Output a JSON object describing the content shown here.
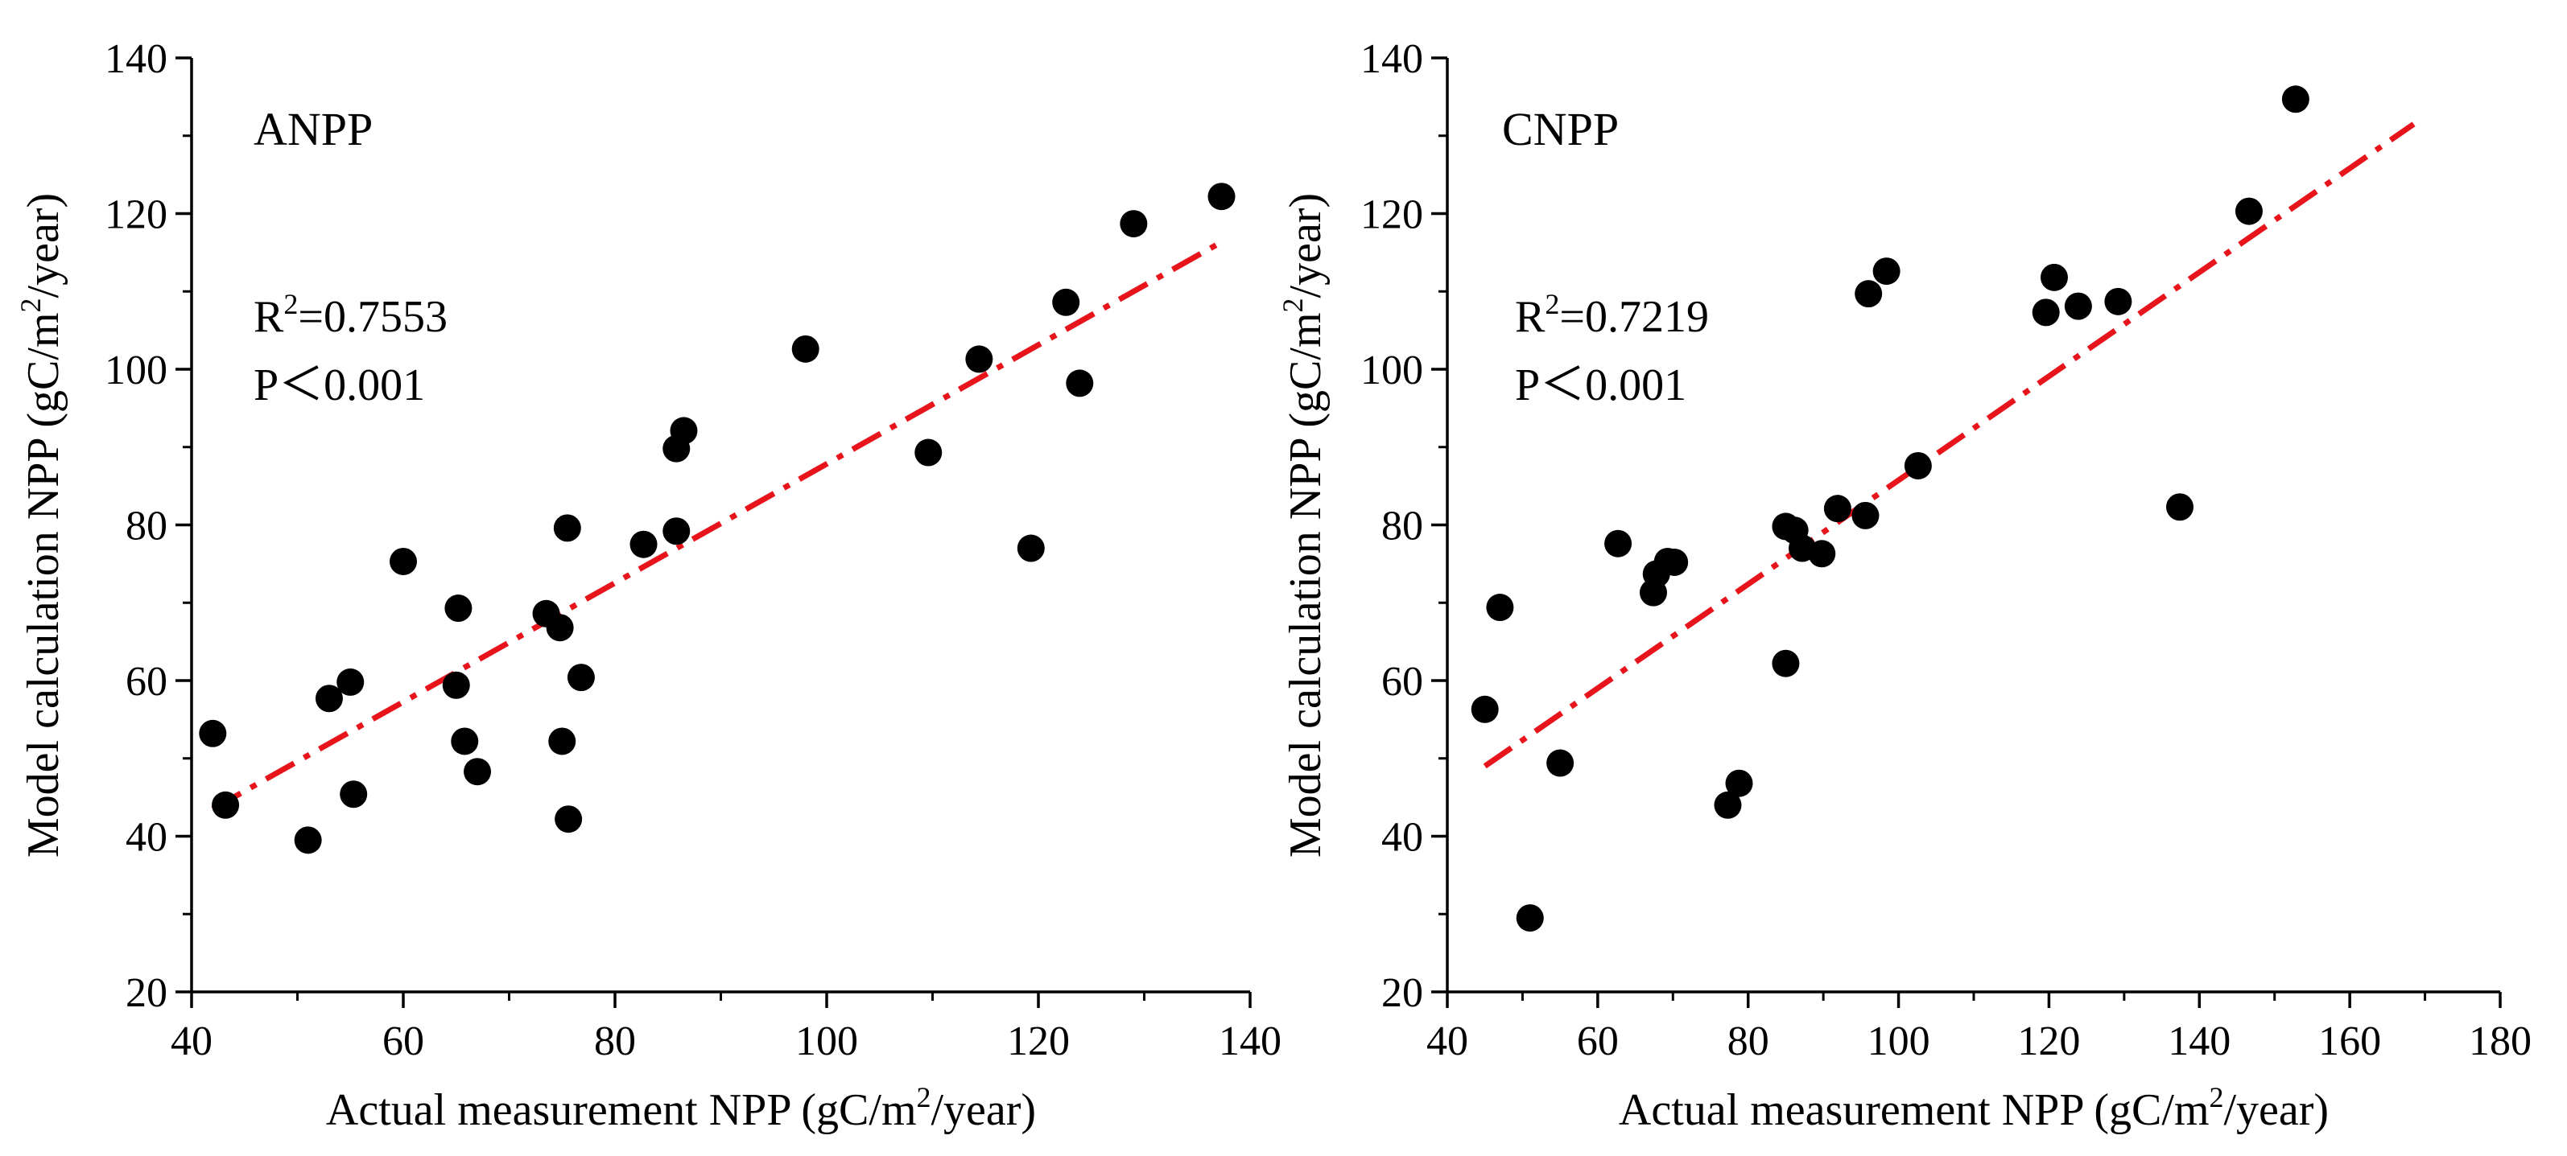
{
  "chart_data": [
    {
      "type": "scatter",
      "title": "ANPP",
      "xlabel": {
        "prefix": "Actual measurement NPP (gC/m",
        "sup": "2",
        "suffix": "/year)"
      },
      "ylabel": {
        "prefix": "Model calculation NPP (gC/m",
        "sup": "2",
        "suffix": "/year)"
      },
      "xlim": [
        40,
        140
      ],
      "ylim": [
        20,
        140
      ],
      "xticks": [
        40,
        60,
        80,
        100,
        120,
        140
      ],
      "yticks": [
        20,
        40,
        60,
        80,
        100,
        120,
        140
      ],
      "r2": {
        "prefix": "R",
        "sup": "2",
        "value": "=0.7553"
      },
      "p_text": "P＜0.001",
      "fit": {
        "x": [
          42,
          137.5
        ],
        "y": [
          43.5,
          116.5
        ]
      },
      "points": [
        [
          42,
          53.2
        ],
        [
          43.2,
          44
        ],
        [
          51,
          39.5
        ],
        [
          53,
          57.7
        ],
        [
          55,
          59.8
        ],
        [
          55.3,
          45.4
        ],
        [
          60,
          75.3
        ],
        [
          65,
          59.4
        ],
        [
          65.2,
          69.3
        ],
        [
          65.8,
          52.2
        ],
        [
          67,
          48.3
        ],
        [
          73.5,
          68.6
        ],
        [
          74.8,
          66.8
        ],
        [
          75,
          52.2
        ],
        [
          75.5,
          79.6
        ],
        [
          75.6,
          42.2
        ],
        [
          76.8,
          60.4
        ],
        [
          82.7,
          77.5
        ],
        [
          85.8,
          79.2
        ],
        [
          85.8,
          89.8
        ],
        [
          86.5,
          92.1
        ],
        [
          98,
          102.6
        ],
        [
          109.6,
          89.3
        ],
        [
          114.4,
          101.3
        ],
        [
          119.3,
          77
        ],
        [
          122.6,
          108.6
        ],
        [
          123.9,
          98.2
        ],
        [
          129,
          118.7
        ],
        [
          137.3,
          122.2
        ]
      ]
    },
    {
      "type": "scatter",
      "title": "CNPP",
      "xlabel": {
        "prefix": "Actual measurement NPP (gC/m",
        "sup": "2",
        "suffix": "/year)"
      },
      "ylabel": {
        "prefix": "Model calculation NPP (gC/m",
        "sup": "2",
        "suffix": "/year)"
      },
      "xlim": [
        40,
        180
      ],
      "ylim": [
        20,
        140
      ],
      "xticks": [
        40,
        60,
        80,
        100,
        120,
        140,
        160,
        180
      ],
      "yticks": [
        20,
        40,
        60,
        80,
        100,
        120,
        140
      ],
      "r2": {
        "prefix": "R",
        "sup": "2",
        "value": "=0.7219"
      },
      "p_text": "P＜0.001",
      "fit": {
        "x": [
          45,
          168.5
        ],
        "y": [
          49,
          131.5
        ]
      },
      "points": [
        [
          45,
          56.3
        ],
        [
          47,
          69.4
        ],
        [
          51,
          29.5
        ],
        [
          55,
          49.4
        ],
        [
          62.7,
          77.6
        ],
        [
          67.4,
          71.3
        ],
        [
          67.8,
          73.7
        ],
        [
          69.3,
          75.3
        ],
        [
          70.2,
          75.2
        ],
        [
          77.3,
          44
        ],
        [
          78.8,
          46.8
        ],
        [
          85,
          62.2
        ],
        [
          85,
          79.8
        ],
        [
          86.2,
          79.3
        ],
        [
          87.2,
          77
        ],
        [
          89.8,
          76.3
        ],
        [
          91.9,
          82.1
        ],
        [
          95.6,
          81.2
        ],
        [
          96,
          109.7
        ],
        [
          98.4,
          112.6
        ],
        [
          102.6,
          87.6
        ],
        [
          119.6,
          107.3
        ],
        [
          120.7,
          111.8
        ],
        [
          123.9,
          108.1
        ],
        [
          129.2,
          108.7
        ],
        [
          137.4,
          82.3
        ],
        [
          146.6,
          120.3
        ],
        [
          152.8,
          134.7
        ]
      ]
    }
  ],
  "colors": {
    "fit_line": "#e8141b",
    "marker": "#000000",
    "axis": "#000000"
  }
}
